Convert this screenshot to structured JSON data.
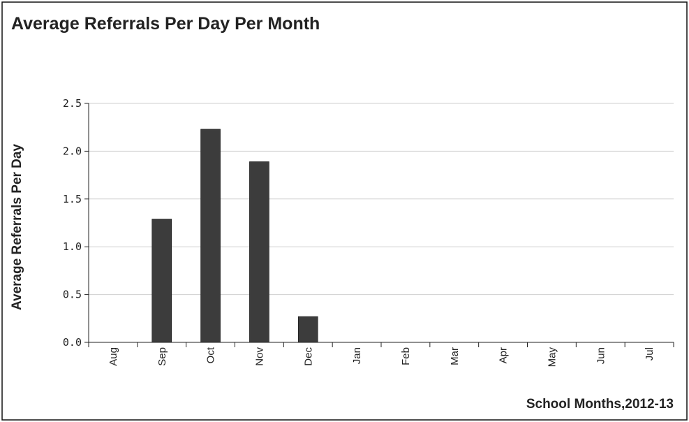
{
  "chart_data": {
    "type": "bar",
    "title": "Average Referrals Per Day Per Month",
    "y_label": "Average Referrals Per Day",
    "x_label": "School Months,2012-13",
    "categories": [
      "Aug",
      "Sep",
      "Oct",
      "Nov",
      "Dec",
      "Jan",
      "Feb",
      "Mar",
      "Apr",
      "May",
      "Jun",
      "Jul"
    ],
    "values": [
      0,
      1.29,
      2.23,
      1.89,
      0.27,
      0,
      0,
      0,
      0,
      0,
      0,
      0
    ],
    "color": "#3c3c3c",
    "ylim": [
      0,
      2.5
    ],
    "yticks": [
      {
        "value": 0,
        "label": "0.0"
      },
      0.5,
      {
        "value": 1,
        "label": "1.0"
      },
      1.5,
      {
        "value": 2,
        "label": "2.0"
      },
      2.5
    ],
    "grid": true
  }
}
